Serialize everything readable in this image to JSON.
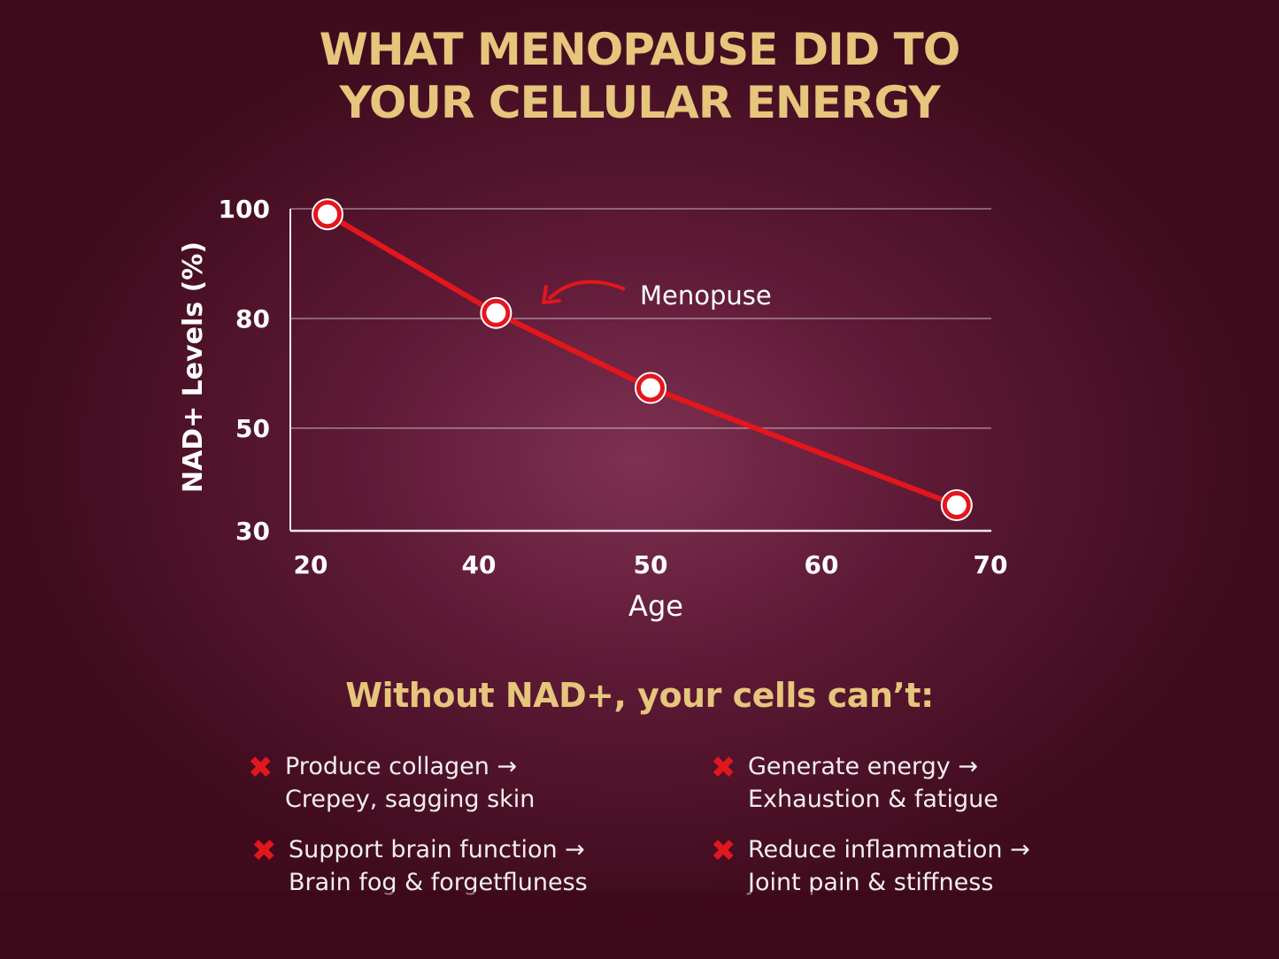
{
  "title_lines": [
    "WHAT MENOPAUSE DID TO",
    "YOUR CELLULAR ENERGY"
  ],
  "chart_data": {
    "type": "line",
    "xlabel": "Age",
    "ylabel": "NAD+ Levels (%)",
    "x_ticks": [
      20,
      40,
      50,
      60,
      70
    ],
    "y_ticks": [
      100,
      80,
      50,
      30
    ],
    "x": [
      22,
      41,
      50,
      68
    ],
    "y": [
      99,
      81,
      61,
      35
    ],
    "grid": "horizontal",
    "line_color": "#e3161d",
    "annotation": {
      "text": "Menopuse",
      "points_to_x": 41
    }
  },
  "subtitle": "Without NAD+, your cells can’t:",
  "items": [
    {
      "title": "Produce collagen →",
      "detail": "Crepey, sagging skin"
    },
    {
      "title": "Generate energy →",
      "detail": "Exhaustion & fatigue"
    },
    {
      "title": "Support brain function →",
      "detail": "Brain fog & forgetfluness"
    },
    {
      "title": "Reduce inflammation →",
      "detail": "Joint pain & stiffness"
    }
  ],
  "colors": {
    "title": "#e6c57c",
    "background": "#5e1a36",
    "accent": "#e3161d"
  }
}
